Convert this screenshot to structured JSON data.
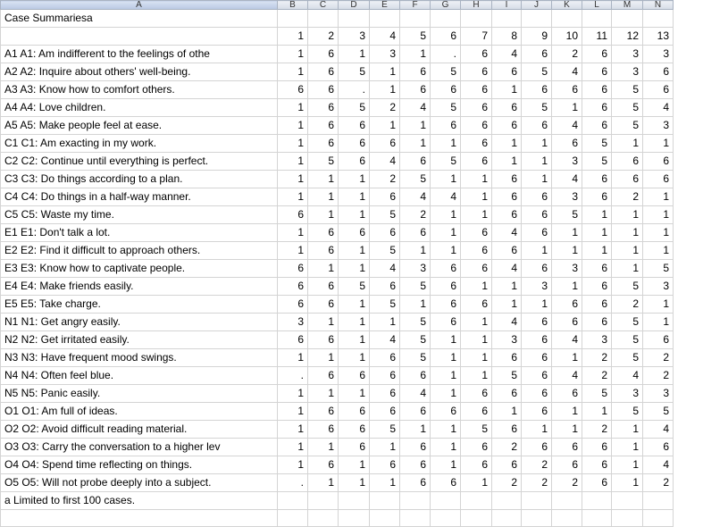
{
  "sheet": {
    "column_letters": [
      "A",
      "B",
      "C",
      "D",
      "E",
      "F",
      "G",
      "H",
      "I",
      "J",
      "K",
      "L",
      "M",
      "N"
    ],
    "title": "Case Summariesa",
    "case_numbers": [
      "1",
      "2",
      "3",
      "4",
      "5",
      "6",
      "7",
      "8",
      "9",
      "10",
      "11",
      "12",
      "13"
    ],
    "rows": [
      {
        "label": "A1 A1: Am indifferent to the feelings of othe",
        "values": [
          "1",
          "6",
          "1",
          "3",
          "1",
          ".",
          "6",
          "4",
          "6",
          "2",
          "6",
          "3",
          "3"
        ]
      },
      {
        "label": "A2 A2: Inquire about others' well-being.",
        "values": [
          "1",
          "6",
          "5",
          "1",
          "6",
          "5",
          "6",
          "6",
          "5",
          "4",
          "6",
          "3",
          "6"
        ]
      },
      {
        "label": "A3 A3: Know how to comfort others.",
        "values": [
          "6",
          "6",
          ".",
          "1",
          "6",
          "6",
          "6",
          "1",
          "6",
          "6",
          "6",
          "5",
          "6"
        ]
      },
      {
        "label": "A4 A4: Love children.",
        "values": [
          "1",
          "6",
          "5",
          "2",
          "4",
          "5",
          "6",
          "6",
          "5",
          "1",
          "6",
          "5",
          "4"
        ]
      },
      {
        "label": "A5 A5: Make people feel at ease.",
        "values": [
          "1",
          "6",
          "6",
          "1",
          "1",
          "6",
          "6",
          "6",
          "6",
          "4",
          "6",
          "5",
          "3"
        ]
      },
      {
        "label": "C1 C1: Am exacting in my work.",
        "values": [
          "1",
          "6",
          "6",
          "6",
          "1",
          "1",
          "6",
          "1",
          "1",
          "6",
          "5",
          "1",
          "1"
        ]
      },
      {
        "label": "C2 C2: Continue until everything is perfect.",
        "values": [
          "1",
          "5",
          "6",
          "4",
          "6",
          "5",
          "6",
          "1",
          "1",
          "3",
          "5",
          "6",
          "6"
        ]
      },
      {
        "label": "C3 C3: Do things according to a plan.",
        "values": [
          "1",
          "1",
          "1",
          "2",
          "5",
          "1",
          "1",
          "6",
          "1",
          "4",
          "6",
          "6",
          "6"
        ]
      },
      {
        "label": "C4 C4: Do things in a half-way manner.",
        "values": [
          "1",
          "1",
          "1",
          "6",
          "4",
          "4",
          "1",
          "6",
          "6",
          "3",
          "6",
          "2",
          "1"
        ]
      },
      {
        "label": "C5 C5: Waste my time.",
        "values": [
          "6",
          "1",
          "1",
          "5",
          "2",
          "1",
          "1",
          "6",
          "6",
          "5",
          "1",
          "1",
          "1"
        ]
      },
      {
        "label": "E1 E1: Don't talk a lot.",
        "values": [
          "1",
          "6",
          "6",
          "6",
          "6",
          "1",
          "6",
          "4",
          "6",
          "1",
          "1",
          "1",
          "1"
        ]
      },
      {
        "label": "E2 E2: Find it difficult to approach others.",
        "values": [
          "1",
          "6",
          "1",
          "5",
          "1",
          "1",
          "6",
          "6",
          "1",
          "1",
          "1",
          "1",
          "1"
        ]
      },
      {
        "label": "E3 E3: Know how to captivate people.",
        "values": [
          "6",
          "1",
          "1",
          "4",
          "3",
          "6",
          "6",
          "4",
          "6",
          "3",
          "6",
          "1",
          "5"
        ]
      },
      {
        "label": "E4 E4: Make friends easily.",
        "values": [
          "6",
          "6",
          "5",
          "6",
          "5",
          "6",
          "1",
          "1",
          "3",
          "1",
          "6",
          "5",
          "3"
        ]
      },
      {
        "label": "E5 E5: Take charge.",
        "values": [
          "6",
          "6",
          "1",
          "5",
          "1",
          "6",
          "6",
          "1",
          "1",
          "6",
          "6",
          "2",
          "1"
        ]
      },
      {
        "label": "N1 N1: Get angry easily.",
        "values": [
          "3",
          "1",
          "1",
          "1",
          "5",
          "6",
          "1",
          "4",
          "6",
          "6",
          "6",
          "5",
          "1"
        ]
      },
      {
        "label": "N2 N2: Get irritated easily.",
        "values": [
          "6",
          "6",
          "1",
          "4",
          "5",
          "1",
          "1",
          "3",
          "6",
          "4",
          "3",
          "5",
          "6"
        ]
      },
      {
        "label": "N3 N3: Have frequent mood swings.",
        "values": [
          "1",
          "1",
          "1",
          "6",
          "5",
          "1",
          "1",
          "6",
          "6",
          "1",
          "2",
          "5",
          "2"
        ]
      },
      {
        "label": "N4 N4: Often feel blue.",
        "values": [
          ".",
          "6",
          "6",
          "6",
          "6",
          "1",
          "1",
          "5",
          "6",
          "4",
          "2",
          "4",
          "2"
        ]
      },
      {
        "label": "N5 N5: Panic easily.",
        "values": [
          "1",
          "1",
          "1",
          "6",
          "4",
          "1",
          "6",
          "6",
          "6",
          "6",
          "5",
          "3",
          "3"
        ]
      },
      {
        "label": "O1 O1: Am full of ideas.",
        "values": [
          "1",
          "6",
          "6",
          "6",
          "6",
          "6",
          "6",
          "1",
          "6",
          "1",
          "1",
          "5",
          "5"
        ]
      },
      {
        "label": "O2 O2: Avoid difficult reading material.",
        "values": [
          "1",
          "6",
          "6",
          "5",
          "1",
          "1",
          "5",
          "6",
          "1",
          "1",
          "2",
          "1",
          "4"
        ]
      },
      {
        "label": "O3 O3: Carry the conversation to a higher lev",
        "values": [
          "1",
          "1",
          "6",
          "1",
          "6",
          "1",
          "6",
          "2",
          "6",
          "6",
          "6",
          "1",
          "6"
        ]
      },
      {
        "label": "O4 O4: Spend time reflecting on things.",
        "values": [
          "1",
          "6",
          "1",
          "6",
          "6",
          "1",
          "6",
          "6",
          "2",
          "6",
          "6",
          "1",
          "4"
        ]
      },
      {
        "label": "O5 O5: Will not probe deeply into a subject.",
        "values": [
          ".",
          "1",
          "1",
          "1",
          "6",
          "6",
          "1",
          "2",
          "2",
          "2",
          "6",
          "1",
          "2"
        ]
      }
    ],
    "footnote": "a Limited to first 100 cases."
  }
}
